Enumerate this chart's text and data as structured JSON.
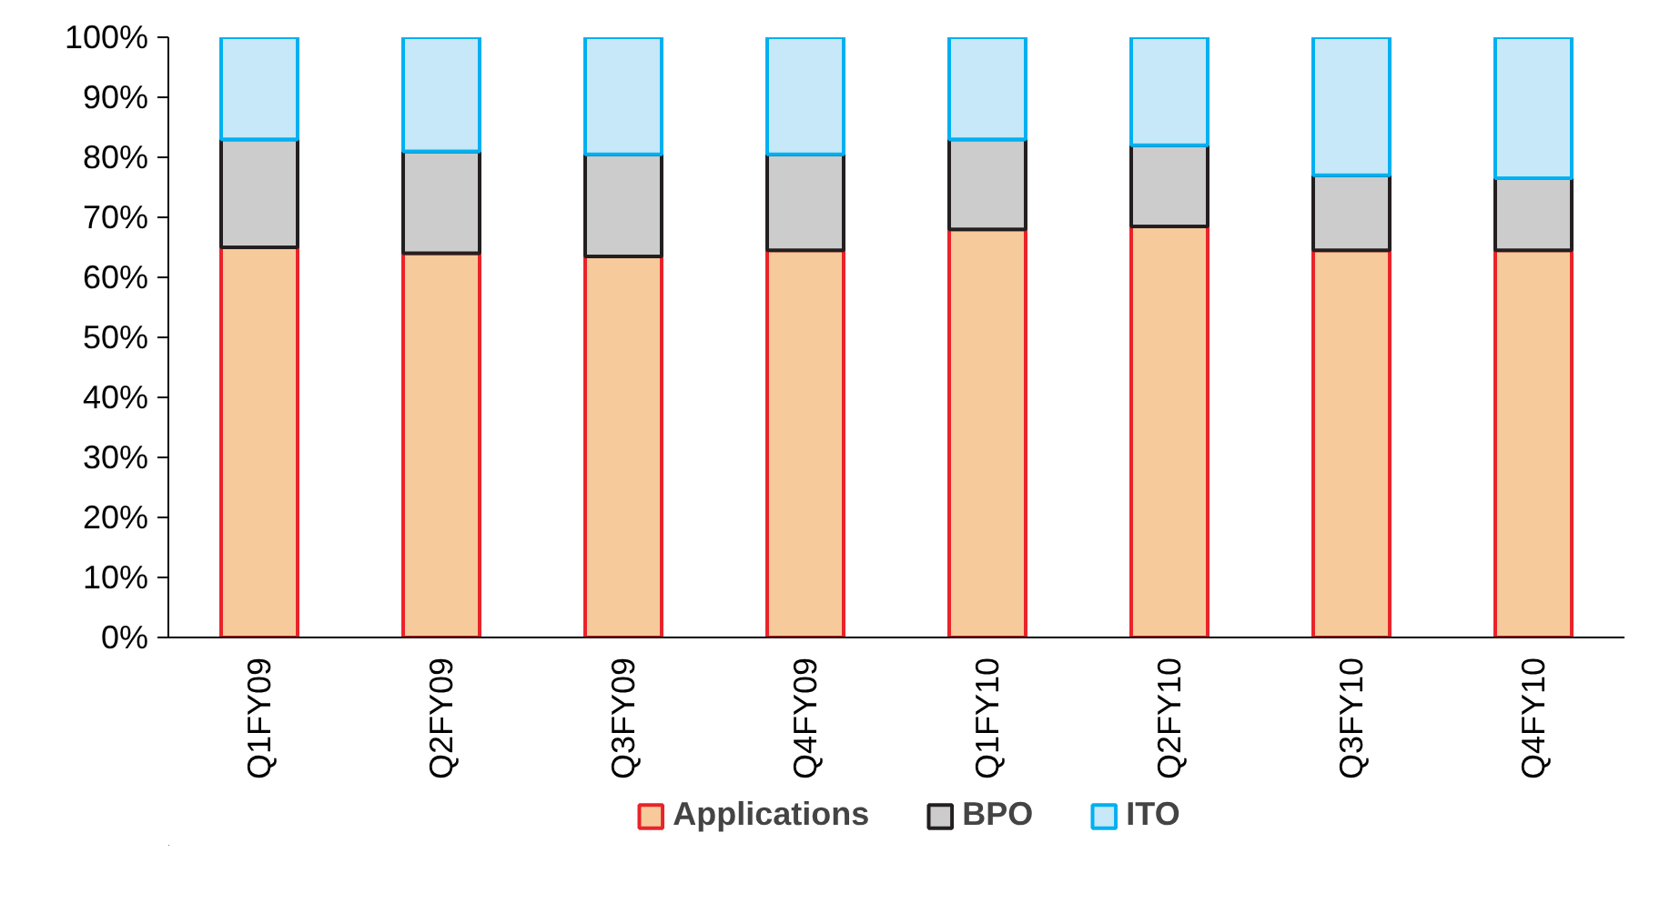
{
  "chart_data": {
    "type": "bar",
    "stacked": true,
    "categories": [
      "Q1FY09",
      "Q2FY09",
      "Q3FY09",
      "Q4FY09",
      "Q1FY10",
      "Q2FY10",
      "Q3FY10",
      "Q4FY10"
    ],
    "series": [
      {
        "name": "Applications",
        "color": "#f6ca9a",
        "values": [
          65,
          64,
          63.5,
          64.5,
          68,
          68.5,
          64.5,
          64.5
        ]
      },
      {
        "name": "BPO",
        "color": "#cccccc",
        "values": [
          18,
          17,
          17,
          16,
          15,
          13.5,
          12.5,
          12
        ]
      },
      {
        "name": "ITO",
        "color": "#c6e8f8",
        "values": [
          17,
          19,
          19.5,
          19.5,
          17,
          18,
          23,
          23.5
        ]
      }
    ],
    "ylim": [
      0,
      100
    ],
    "yticks": [
      {
        "value": 0,
        "label": "0%"
      },
      {
        "value": 10,
        "label": "10%"
      },
      {
        "value": 20,
        "label": "20%"
      },
      {
        "value": 30,
        "label": "30%"
      },
      {
        "value": 40,
        "label": "40%"
      },
      {
        "value": 50,
        "label": "50%"
      },
      {
        "value": 60,
        "label": "60%"
      },
      {
        "value": 70,
        "label": "70%"
      },
      {
        "value": 80,
        "label": "80%"
      },
      {
        "value": 90,
        "label": "90%"
      },
      {
        "value": 100,
        "label": "100%"
      }
    ],
    "grid": false,
    "legend": "bottom"
  }
}
